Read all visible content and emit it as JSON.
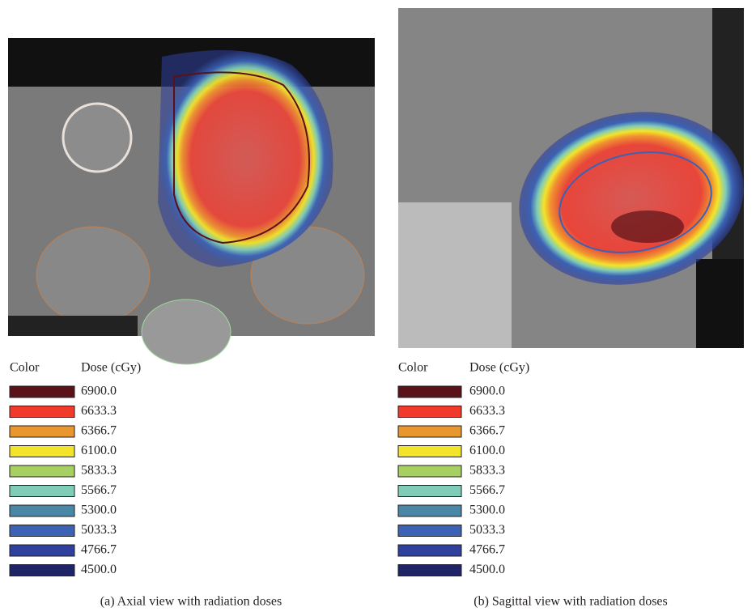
{
  "panels": [
    {
      "legend": {
        "color_header": "Color",
        "dose_header": "Dose (cGy)",
        "rows": [
          {
            "dose": "6900.0",
            "color": "#5a1218"
          },
          {
            "dose": "6633.3",
            "color": "#ef3a2c"
          },
          {
            "dose": "6366.7",
            "color": "#e8962e"
          },
          {
            "dose": "6100.0",
            "color": "#f2e42a"
          },
          {
            "dose": "5833.3",
            "color": "#a7d063"
          },
          {
            "dose": "5566.7",
            "color": "#7fcdb8"
          },
          {
            "dose": "5300.0",
            "color": "#4a87a6"
          },
          {
            "dose": "5033.3",
            "color": "#3b62b5"
          },
          {
            "dose": "4766.7",
            "color": "#2e3f9c"
          },
          {
            "dose": "4500.0",
            "color": "#1e2466"
          }
        ]
      },
      "caption": "(a) Axial view with radiation doses"
    },
    {
      "legend": {
        "color_header": "Color",
        "dose_header": "Dose (cGy)",
        "rows": [
          {
            "dose": "6900.0",
            "color": "#5a1218"
          },
          {
            "dose": "6633.3",
            "color": "#ef3a2c"
          },
          {
            "dose": "6366.7",
            "color": "#e8962e"
          },
          {
            "dose": "6100.0",
            "color": "#f2e42a"
          },
          {
            "dose": "5833.3",
            "color": "#a7d063"
          },
          {
            "dose": "5566.7",
            "color": "#7fcdb8"
          },
          {
            "dose": "5300.0",
            "color": "#4a87a6"
          },
          {
            "dose": "5033.3",
            "color": "#3b62b5"
          },
          {
            "dose": "4766.7",
            "color": "#2e3f9c"
          },
          {
            "dose": "4500.0",
            "color": "#1e2466"
          }
        ]
      },
      "caption": "(b) Sagittal view with radiation doses"
    }
  ]
}
